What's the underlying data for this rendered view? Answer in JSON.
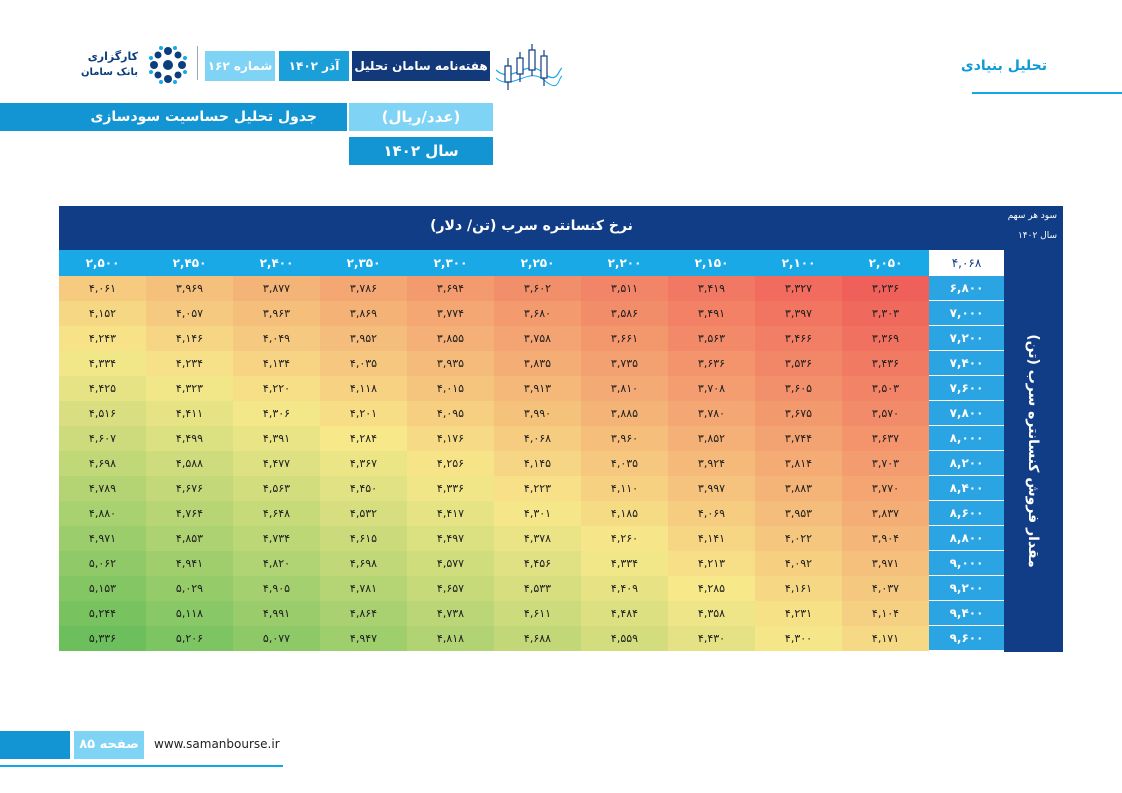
{
  "header": {
    "section": "تحلیل بنیادی",
    "logo_line1": "کارگزاری",
    "logo_line2": "بانک سامان",
    "magazine": "هفته‌نامه سامان تحلیل",
    "date": "آذر ۱۴۰۲",
    "issue": "شماره ۱۶۲"
  },
  "title": {
    "main": "جدول تحلیل حساسیت سودسازی",
    "unit": "(عدد/ریال)",
    "year": "سال ۱۴۰۲"
  },
  "table": {
    "eps_label": "سود هر سهم",
    "eps_year": "سال ۱۴۰۲",
    "current_eps": "۴,۰۶۸",
    "col_title": "نرخ کنسانتره سرب (تن/ دلار)",
    "row_title": "مقدار فروش کنسانتره سرب (تن)",
    "columns": [
      "۲,۰۵۰",
      "۲,۱۰۰",
      "۲,۱۵۰",
      "۲,۲۰۰",
      "۲,۲۵۰",
      "۲,۳۰۰",
      "۲,۳۵۰",
      "۲,۴۰۰",
      "۲,۴۵۰",
      "۲,۵۰۰"
    ],
    "rows": [
      {
        "label": "۶,۸۰۰",
        "values": [
          "۳,۲۳۶",
          "۳,۳۲۷",
          "۳,۴۱۹",
          "۳,۵۱۱",
          "۳,۶۰۲",
          "۳,۶۹۴",
          "۳,۷۸۶",
          "۳,۸۷۷",
          "۳,۹۶۹",
          "۴,۰۶۱"
        ]
      },
      {
        "label": "۷,۰۰۰",
        "values": [
          "۳,۳۰۳",
          "۳,۳۹۷",
          "۳,۴۹۱",
          "۳,۵۸۶",
          "۳,۶۸۰",
          "۳,۷۷۴",
          "۳,۸۶۹",
          "۳,۹۶۳",
          "۴,۰۵۷",
          "۴,۱۵۲"
        ]
      },
      {
        "label": "۷,۲۰۰",
        "values": [
          "۳,۳۶۹",
          "۳,۴۶۶",
          "۳,۵۶۳",
          "۳,۶۶۱",
          "۳,۷۵۸",
          "۳,۸۵۵",
          "۳,۹۵۲",
          "۴,۰۴۹",
          "۴,۱۴۶",
          "۴,۲۴۳"
        ]
      },
      {
        "label": "۷,۴۰۰",
        "values": [
          "۳,۴۳۶",
          "۳,۵۳۶",
          "۳,۶۳۶",
          "۳,۷۳۵",
          "۳,۸۳۵",
          "۳,۹۳۵",
          "۴,۰۳۵",
          "۴,۱۳۴",
          "۴,۲۳۴",
          "۴,۳۳۴"
        ]
      },
      {
        "label": "۷,۶۰۰",
        "values": [
          "۳,۵۰۳",
          "۳,۶۰۵",
          "۳,۷۰۸",
          "۳,۸۱۰",
          "۳,۹۱۳",
          "۴,۰۱۵",
          "۴,۱۱۸",
          "۴,۲۲۰",
          "۴,۳۲۳",
          "۴,۴۲۵"
        ]
      },
      {
        "label": "۷,۸۰۰",
        "values": [
          "۳,۵۷۰",
          "۳,۶۷۵",
          "۳,۷۸۰",
          "۳,۸۸۵",
          "۳,۹۹۰",
          "۴,۰۹۵",
          "۴,۲۰۱",
          "۴,۳۰۶",
          "۴,۴۱۱",
          "۴,۵۱۶"
        ]
      },
      {
        "label": "۸,۰۰۰",
        "values": [
          "۳,۶۳۷",
          "۳,۷۴۴",
          "۳,۸۵۲",
          "۳,۹۶۰",
          "۴,۰۶۸",
          "۴,۱۷۶",
          "۴,۲۸۴",
          "۴,۳۹۱",
          "۴,۴۹۹",
          "۴,۶۰۷"
        ]
      },
      {
        "label": "۸,۲۰۰",
        "values": [
          "۳,۷۰۳",
          "۳,۸۱۴",
          "۳,۹۲۴",
          "۴,۰۳۵",
          "۴,۱۴۵",
          "۴,۲۵۶",
          "۴,۳۶۷",
          "۴,۴۷۷",
          "۴,۵۸۸",
          "۴,۶۹۸"
        ]
      },
      {
        "label": "۸,۴۰۰",
        "values": [
          "۳,۷۷۰",
          "۳,۸۸۳",
          "۳,۹۹۷",
          "۴,۱۱۰",
          "۴,۲۲۳",
          "۴,۳۳۶",
          "۴,۴۵۰",
          "۴,۵۶۳",
          "۴,۶۷۶",
          "۴,۷۸۹"
        ]
      },
      {
        "label": "۸,۶۰۰",
        "values": [
          "۳,۸۳۷",
          "۳,۹۵۳",
          "۴,۰۶۹",
          "۴,۱۸۵",
          "۴,۳۰۱",
          "۴,۴۱۷",
          "۴,۵۳۲",
          "۴,۶۴۸",
          "۴,۷۶۴",
          "۴,۸۸۰"
        ]
      },
      {
        "label": "۸,۸۰۰",
        "values": [
          "۳,۹۰۴",
          "۴,۰۲۲",
          "۴,۱۴۱",
          "۴,۲۶۰",
          "۴,۳۷۸",
          "۴,۴۹۷",
          "۴,۶۱۵",
          "۴,۷۳۴",
          "۴,۸۵۳",
          "۴,۹۷۱"
        ]
      },
      {
        "label": "۹,۰۰۰",
        "values": [
          "۳,۹۷۱",
          "۴,۰۹۲",
          "۴,۲۱۳",
          "۴,۳۳۴",
          "۴,۴۵۶",
          "۴,۵۷۷",
          "۴,۶۹۸",
          "۴,۸۲۰",
          "۴,۹۴۱",
          "۵,۰۶۲"
        ]
      },
      {
        "label": "۹,۲۰۰",
        "values": [
          "۴,۰۳۷",
          "۴,۱۶۱",
          "۴,۲۸۵",
          "۴,۴۰۹",
          "۴,۵۳۳",
          "۴,۶۵۷",
          "۴,۷۸۱",
          "۴,۹۰۵",
          "۵,۰۲۹",
          "۵,۱۵۳"
        ]
      },
      {
        "label": "۹,۴۰۰",
        "values": [
          "۴,۱۰۴",
          "۴,۲۳۱",
          "۴,۳۵۸",
          "۴,۴۸۴",
          "۴,۶۱۱",
          "۴,۷۳۸",
          "۴,۸۶۴",
          "۴,۹۹۱",
          "۵,۱۱۸",
          "۵,۲۴۴"
        ]
      },
      {
        "label": "۹,۶۰۰",
        "values": [
          "۴,۱۷۱",
          "۴,۳۰۰",
          "۴,۴۳۰",
          "۴,۵۵۹",
          "۴,۶۸۸",
          "۴,۸۱۸",
          "۴,۹۴۷",
          "۵,۰۷۷",
          "۵,۲۰۶",
          "۵,۳۳۶"
        ]
      }
    ]
  },
  "footer": {
    "page": "صفحه ۸۵",
    "url": "www.samanbourse.ir"
  },
  "colors": {
    "navy": "#113d86",
    "blue": "#1395d3",
    "light_blue": "#7fd3f5",
    "heat_low": "#f0605a",
    "heat_mid": "#f7e88a",
    "heat_high": "#6cbf5c"
  }
}
